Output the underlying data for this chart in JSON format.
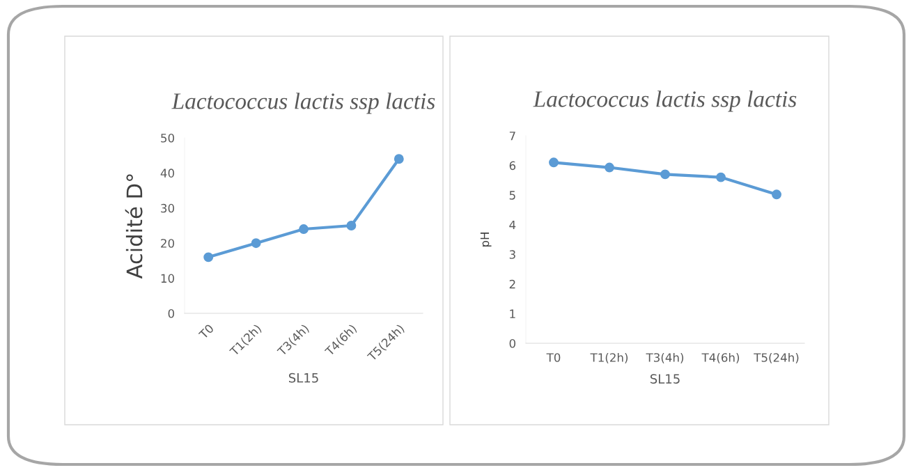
{
  "chart_data": [
    {
      "type": "line",
      "title": "Lactococcus lactis ssp lactis",
      "xlabel": "SL15",
      "ylabel": "Acidité D°",
      "categories": [
        "T0",
        "T1(2h)",
        "T3(4h)",
        "T4(6h)",
        "T5(24h)"
      ],
      "series": [
        {
          "color": "#5b9bd5",
          "values": [
            16,
            20,
            24,
            25,
            44
          ]
        }
      ],
      "ylim": [
        0,
        50
      ],
      "yticks": [
        0,
        10,
        20,
        30,
        40,
        50
      ],
      "marker": "circle",
      "line_style": "solid",
      "grid": false,
      "legend": false
    },
    {
      "type": "line",
      "title": "Lactococcus lactis ssp lactis",
      "xlabel": "SL15",
      "ylabel": "pH",
      "categories": [
        "T0",
        "T1(2h)",
        "T3(4h)",
        "T4(6h)",
        "T5(24h)"
      ],
      "series": [
        {
          "color": "#5b9bd5",
          "values": [
            6.1,
            5.93,
            5.7,
            5.6,
            5.02
          ]
        }
      ],
      "ylim": [
        0,
        7
      ],
      "yticks": [
        0,
        1,
        2,
        3,
        4,
        5,
        6,
        7
      ],
      "marker": "circle",
      "line_style": "solid",
      "grid": false,
      "legend": false
    }
  ]
}
